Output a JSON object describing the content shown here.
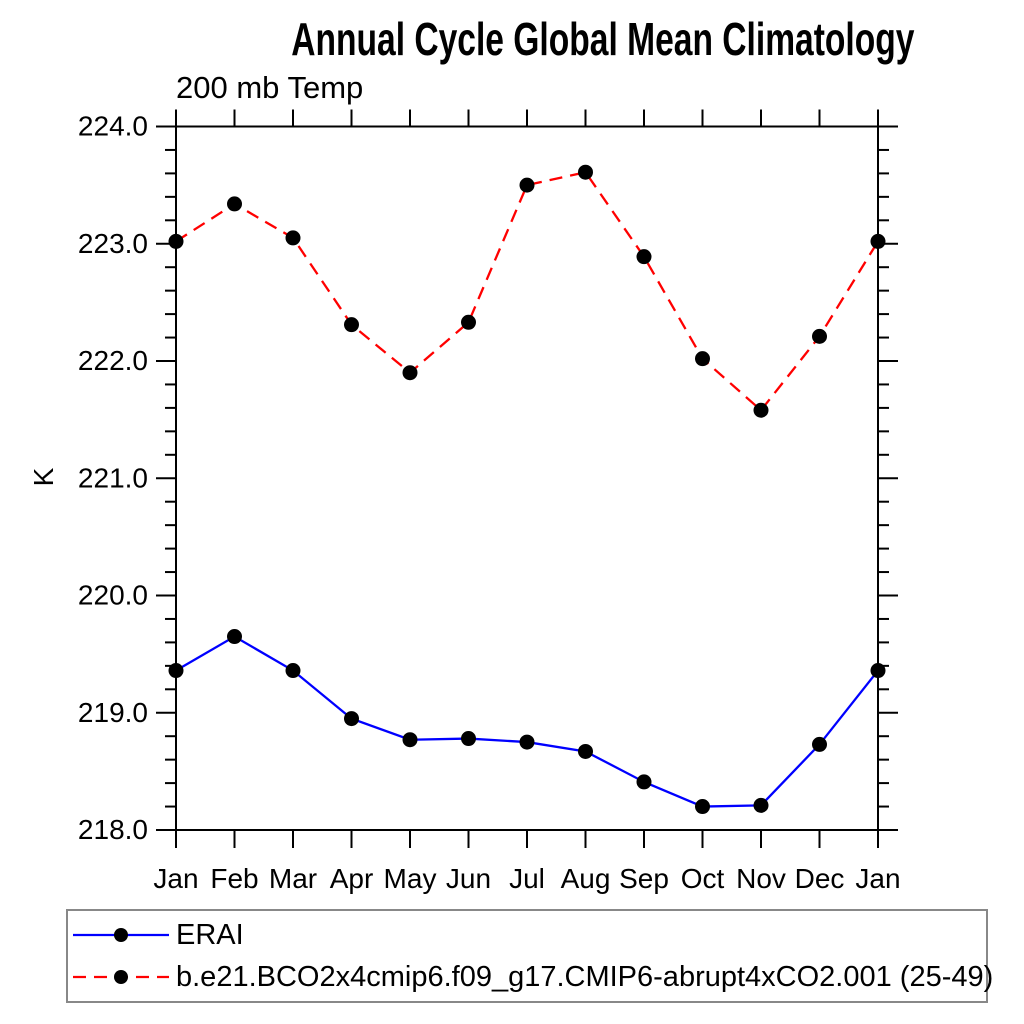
{
  "chart_data": {
    "type": "line",
    "title": "Annual Cycle Global Mean Climatology",
    "subtitle": "200 mb Temp",
    "ylabel": "K",
    "categories": [
      "Jan",
      "Feb",
      "Mar",
      "Apr",
      "May",
      "Jun",
      "Jul",
      "Aug",
      "Sep",
      "Oct",
      "Nov",
      "Dec",
      "Jan"
    ],
    "ylim": [
      218.0,
      224.0
    ],
    "ytick_labels": [
      "224.0",
      "223.0",
      "222.0",
      "221.0",
      "220.0",
      "219.0",
      "218.0"
    ],
    "ytick_interval": 1.0,
    "minor_tick_interval": 0.2,
    "grid": false,
    "legend_position": "bottom-left-box",
    "axis_color": "#000000",
    "marker_color": "#000000",
    "series": [
      {
        "name": "ERAI",
        "color": "#0000ff",
        "line_style": "solid",
        "marker": "circle",
        "values": [
          219.36,
          219.65,
          219.36,
          218.95,
          218.77,
          218.78,
          218.75,
          218.67,
          218.41,
          218.2,
          218.21,
          218.73,
          219.36
        ]
      },
      {
        "name": "b.e21.BCO2x4cmip6.f09_g17.CMIP6-abrupt4xCO2.001 (25-49)",
        "color": "#ff0000",
        "line_style": "dashed",
        "marker": "circle",
        "values": [
          223.02,
          223.34,
          223.05,
          222.31,
          221.9,
          222.33,
          223.5,
          223.61,
          222.89,
          222.02,
          221.58,
          222.21,
          223.02
        ]
      }
    ]
  }
}
